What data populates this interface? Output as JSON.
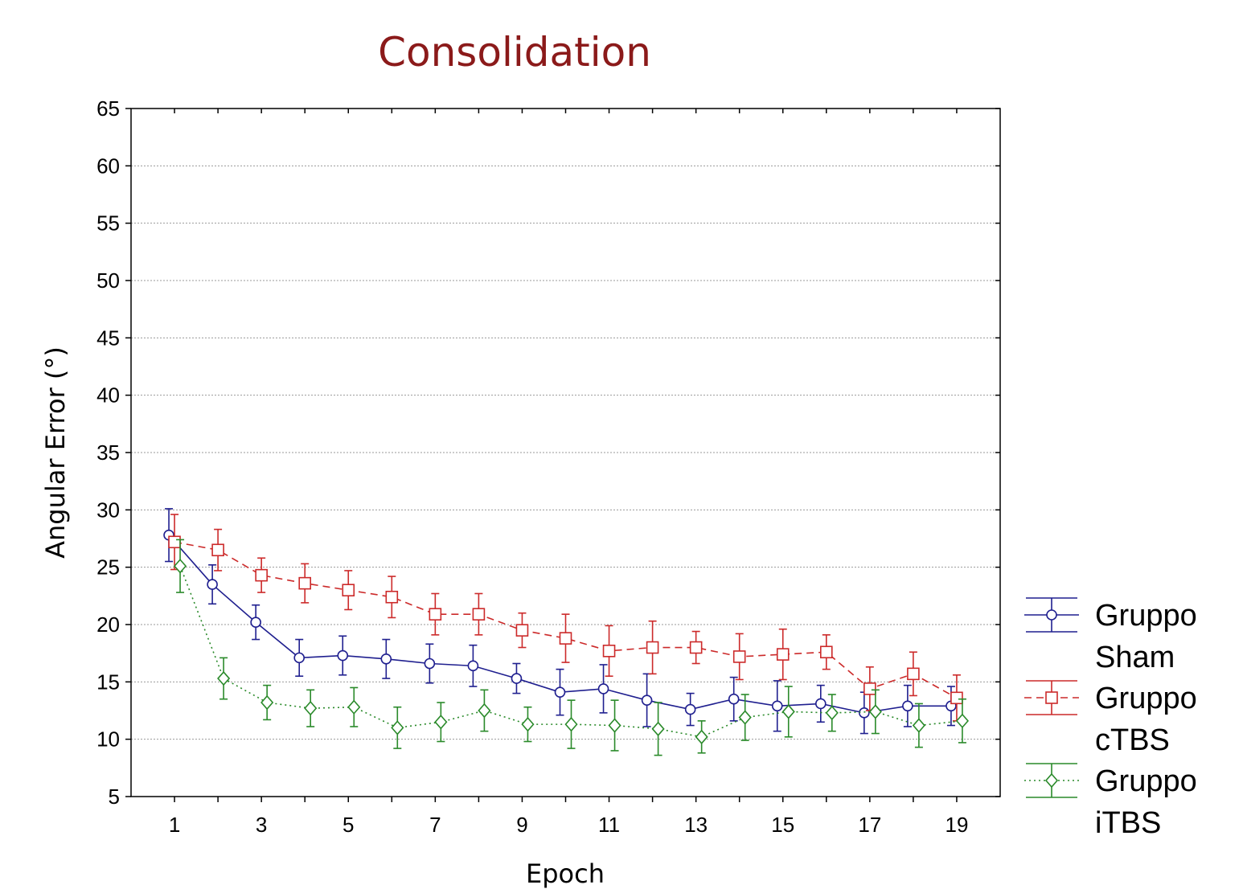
{
  "chart_data": {
    "type": "line",
    "title": "Consolidation",
    "xlabel": "Epoch",
    "ylabel": "Angular Error (°)",
    "ylim": [
      5,
      65
    ],
    "yticks": [
      5,
      10,
      15,
      20,
      25,
      30,
      35,
      40,
      45,
      50,
      55,
      60,
      65
    ],
    "xlim": [
      0,
      20
    ],
    "xticks": [
      1,
      3,
      5,
      7,
      9,
      11,
      13,
      15,
      17,
      19
    ],
    "grid": true,
    "legend_position": "right-bottom",
    "title_color": "#8b1a1a",
    "x": [
      1,
      2,
      3,
      4,
      5,
      6,
      7,
      8,
      9,
      10,
      11,
      12,
      13,
      14,
      15,
      16,
      17,
      18,
      19
    ],
    "series": [
      {
        "name": "Gruppo Sham",
        "legend": [
          "Gruppo",
          "Sham"
        ],
        "color": "#1f1f8f",
        "line_style": "solid",
        "marker": "circle",
        "values": [
          27.8,
          23.5,
          20.2,
          17.1,
          17.3,
          17.0,
          16.6,
          16.4,
          15.3,
          14.1,
          14.4,
          13.4,
          12.6,
          13.5,
          12.9,
          13.1,
          12.3,
          12.9,
          12.9
        ],
        "errors": [
          2.3,
          1.7,
          1.5,
          1.6,
          1.7,
          1.7,
          1.7,
          1.8,
          1.3,
          2.0,
          2.1,
          2.3,
          1.4,
          1.9,
          2.2,
          1.6,
          1.8,
          1.8,
          1.7
        ]
      },
      {
        "name": "Gruppo cTBS",
        "legend": [
          "Gruppo",
          "cTBS"
        ],
        "color": "#cc2a2a",
        "line_style": "dashed",
        "marker": "square",
        "values": [
          27.2,
          26.5,
          24.3,
          23.6,
          23.0,
          22.4,
          20.9,
          20.9,
          19.5,
          18.8,
          17.7,
          18.0,
          18.0,
          17.2,
          17.4,
          17.6,
          14.4,
          15.7,
          13.6
        ],
        "errors": [
          2.4,
          1.8,
          1.5,
          1.7,
          1.7,
          1.8,
          1.8,
          1.8,
          1.5,
          2.1,
          2.2,
          2.3,
          1.4,
          2.0,
          2.2,
          1.5,
          1.9,
          1.9,
          2.0
        ]
      },
      {
        "name": "Gruppo iTBS",
        "legend": [
          "Gruppo",
          "iTBS"
        ],
        "color": "#2a8a2a",
        "line_style": "dotted",
        "marker": "diamond",
        "values": [
          25.1,
          15.3,
          13.2,
          12.7,
          12.8,
          11.0,
          11.5,
          12.5,
          11.3,
          11.3,
          11.2,
          10.9,
          10.2,
          11.9,
          12.4,
          12.3,
          12.4,
          11.2,
          11.6
        ],
        "errors": [
          2.3,
          1.8,
          1.5,
          1.6,
          1.7,
          1.8,
          1.7,
          1.8,
          1.5,
          2.1,
          2.2,
          2.3,
          1.4,
          2.0,
          2.2,
          1.6,
          1.9,
          1.9,
          1.9
        ]
      }
    ]
  }
}
